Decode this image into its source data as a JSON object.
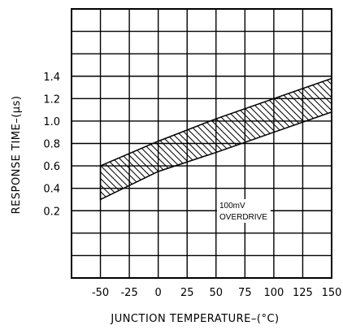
{
  "chart_data": {
    "type": "area",
    "title": "",
    "xlabel": "JUNCTION TEMPERATURE–(°C)",
    "ylabel": "RESPONSE TIME–(μs)",
    "x_ticks": [
      "-50",
      "-25",
      "0",
      "25",
      "50",
      "75",
      "100",
      "125",
      "150"
    ],
    "y_ticks": [
      "0.2",
      "0.4",
      "0.6",
      "0.8",
      "1.0",
      "1.2",
      "1.4"
    ],
    "xlim": [
      -75,
      150
    ],
    "ylim": [
      -0.4,
      2.0
    ],
    "grid": true,
    "band": {
      "x": [
        -50,
        0,
        50,
        100,
        150
      ],
      "upper": [
        0.6,
        0.82,
        1.02,
        1.2,
        1.38
      ],
      "lower": [
        0.3,
        0.55,
        0.72,
        0.9,
        1.08
      ]
    },
    "annotation": [
      "100mV",
      "OVERDRIVE"
    ]
  }
}
